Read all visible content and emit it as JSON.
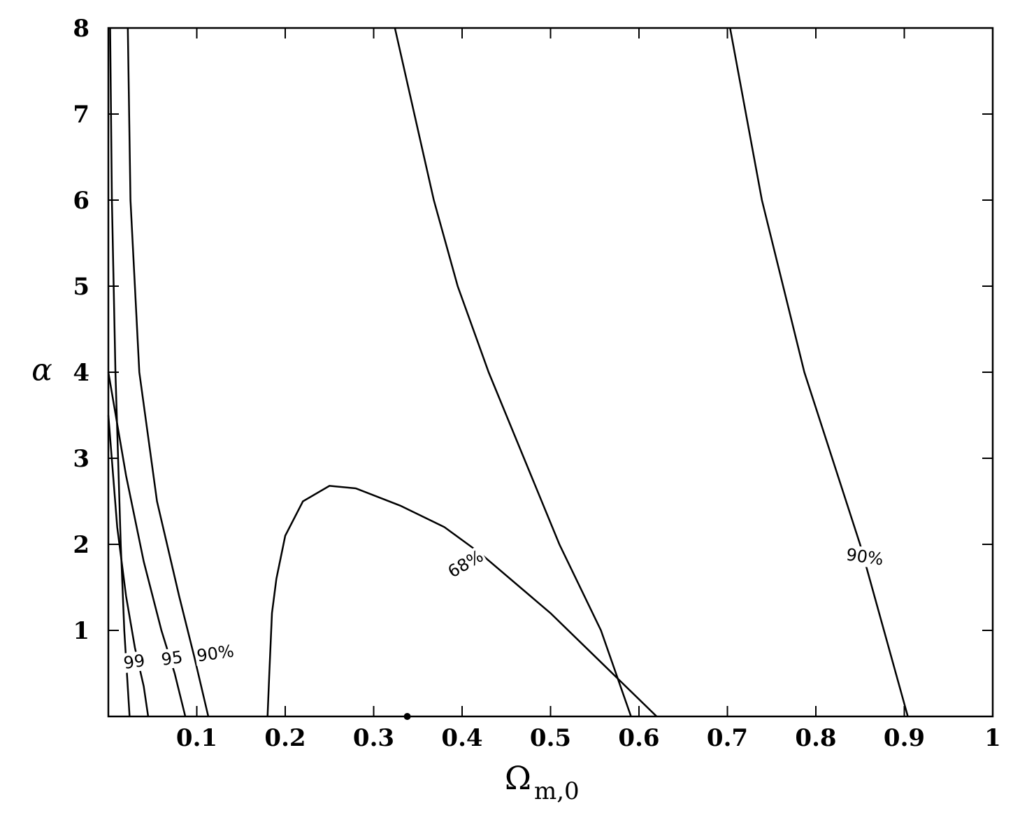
{
  "chart_data": {
    "type": "line",
    "xlabel": "Ω",
    "xlabel_sub": "m,0",
    "ylabel": "α",
    "xlim": [
      0,
      1
    ],
    "xticks": [
      0.1,
      0.2,
      0.3,
      0.4,
      0.5,
      0.6,
      0.7,
      0.8,
      0.9,
      1
    ],
    "ylim": [
      0,
      8
    ],
    "yticks": [
      1,
      2,
      3,
      4,
      5,
      6,
      7,
      8
    ],
    "color": "#000000",
    "series": [
      {
        "x": [
          0.002,
          0.004,
          0.008,
          0.014,
          0.018,
          0.024
        ],
        "y": [
          8,
          6,
          4,
          2,
          1,
          0
        ]
      },
      {
        "name": "99",
        "x": [
          0,
          0.01,
          0.02,
          0.03,
          0.04,
          0.045
        ],
        "y": [
          3.5,
          2.2,
          1.4,
          0.8,
          0.35,
          0
        ]
      },
      {
        "name": "95",
        "x": [
          0,
          0.02,
          0.04,
          0.06,
          0.075,
          0.087
        ],
        "y": [
          4,
          2.8,
          1.8,
          1.0,
          0.5,
          0
        ]
      },
      {
        "name": "90%",
        "x": [
          0.022,
          0.025,
          0.035,
          0.055,
          0.08,
          0.097,
          0.113
        ],
        "y": [
          8,
          6,
          4,
          2.5,
          1.4,
          0.7,
          0
        ]
      },
      {
        "name": "68%",
        "x": [
          0.18,
          0.182,
          0.185,
          0.19,
          0.2,
          0.22,
          0.25,
          0.28,
          0.33,
          0.38,
          0.42,
          0.5,
          0.56,
          0.62
        ],
        "y": [
          0,
          0.5,
          1.2,
          1.6,
          2.1,
          2.5,
          2.68,
          2.65,
          2.45,
          2.2,
          1.9,
          1.2,
          0.6,
          0
        ]
      },
      {
        "x": [
          0.324,
          0.368,
          0.395,
          0.43,
          0.47,
          0.51,
          0.557,
          0.591
        ],
        "y": [
          8,
          6,
          5,
          4,
          3,
          2,
          1,
          0
        ]
      },
      {
        "name": "90%",
        "x": [
          0.703,
          0.739,
          0.787,
          0.85,
          0.877,
          0.904
        ],
        "y": [
          8,
          6,
          4,
          2,
          1,
          0
        ]
      }
    ],
    "best_fit": {
      "x": 0.338,
      "y": 0
    }
  }
}
